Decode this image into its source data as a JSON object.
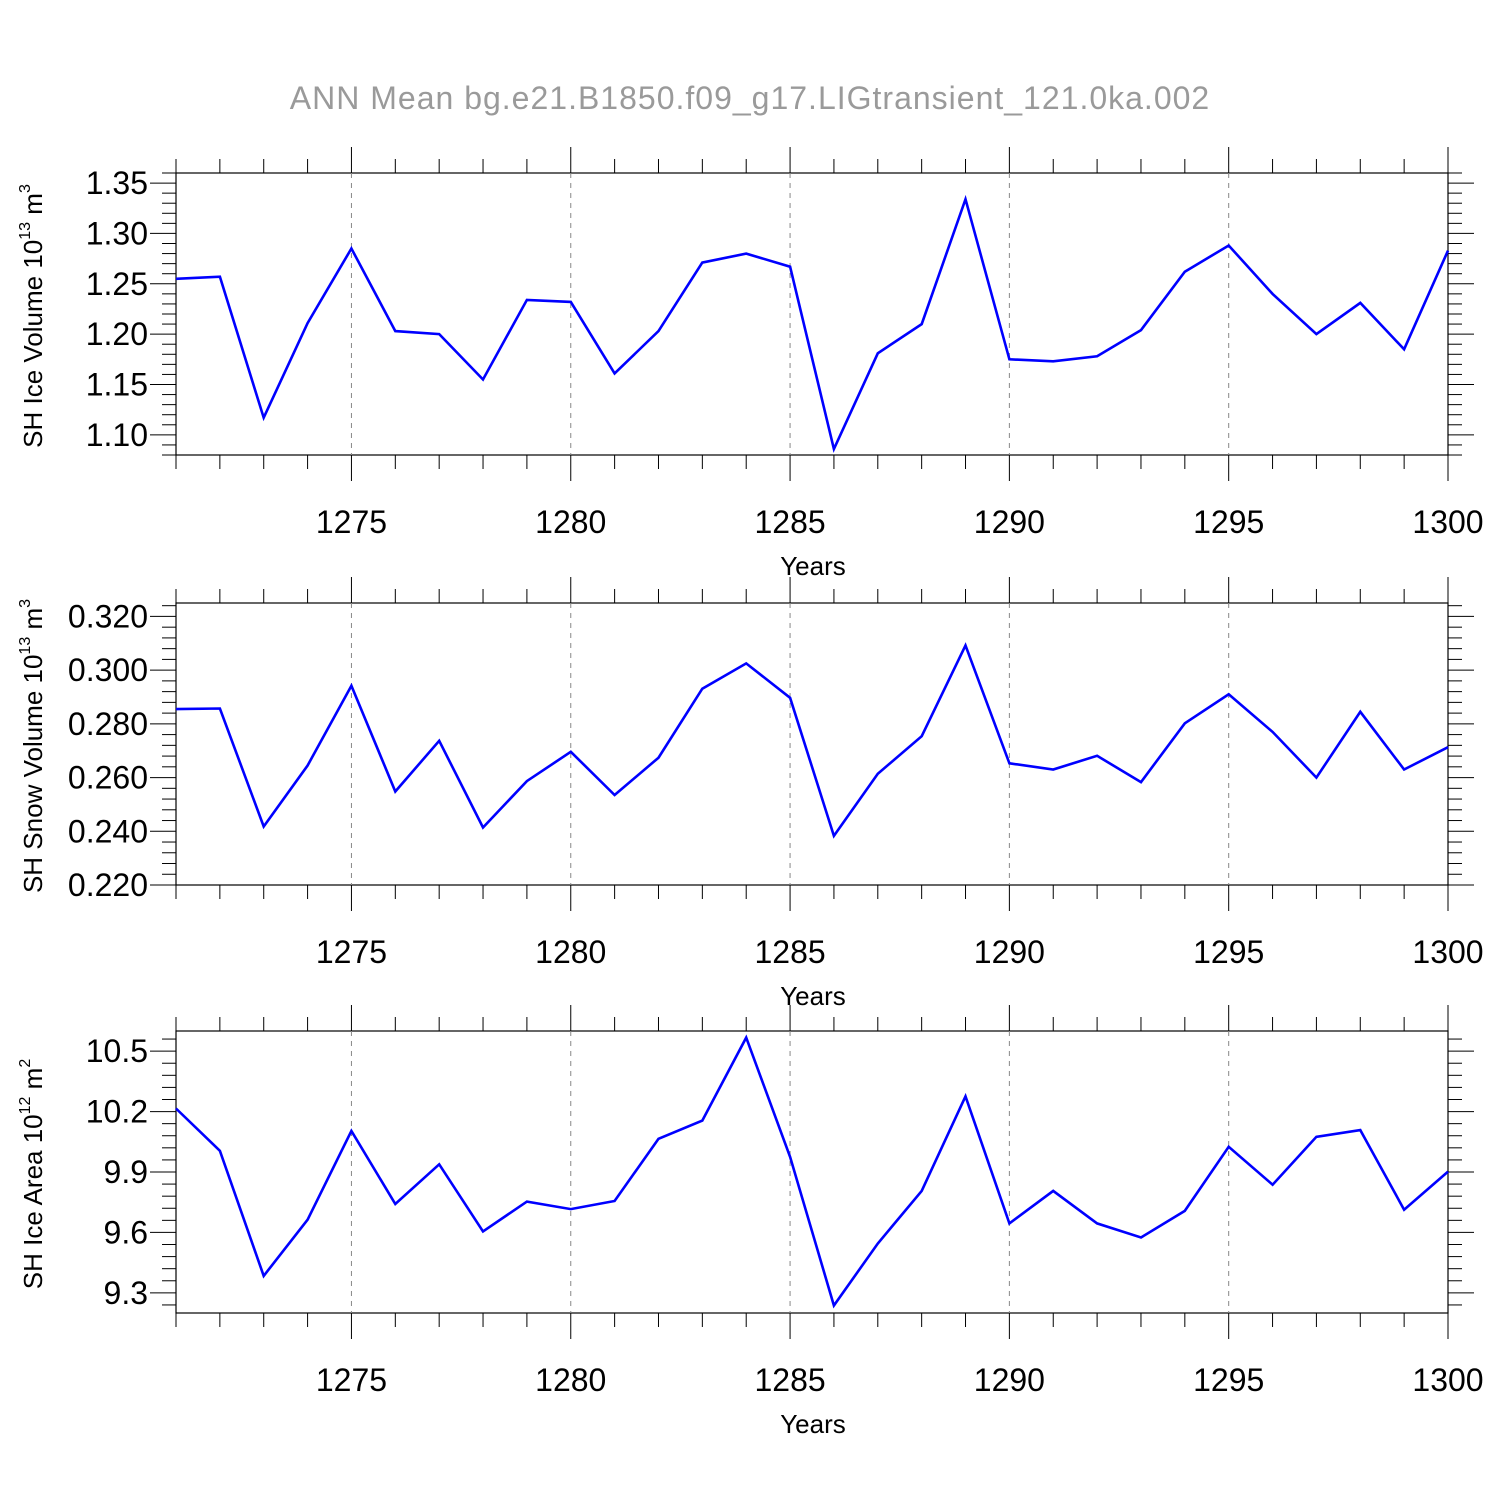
{
  "title": "ANN Mean  bg.e21.B1850.f09_g17.LIGtransient_121.0ka.002",
  "colors": {
    "series": "#0000ff",
    "grid": "#888888",
    "axes": "#000000",
    "title": "#9a9a9a"
  },
  "chart_data": [
    {
      "type": "line",
      "ylabel": "SH Ice Volume 10",
      "ylabel_exp": "13",
      "ylabel_unit": " m",
      "ylabel_unit_exp": "3",
      "xlabel": "Years",
      "xlim": [
        1271,
        1300
      ],
      "ylim": [
        1.08,
        1.36
      ],
      "xticks": [
        1275,
        1280,
        1285,
        1290,
        1295,
        1300
      ],
      "yticks": [
        "1.10",
        "1.15",
        "1.20",
        "1.25",
        "1.30",
        "1.35"
      ],
      "grid": "vertical dashed at major x ticks",
      "x": [
        1271,
        1272,
        1273,
        1274,
        1275,
        1276,
        1277,
        1278,
        1279,
        1280,
        1281,
        1282,
        1283,
        1284,
        1285,
        1286,
        1287,
        1288,
        1289,
        1290,
        1291,
        1292,
        1293,
        1294,
        1295,
        1296,
        1297,
        1298,
        1299,
        1300
      ],
      "values": [
        1.255,
        1.257,
        1.117,
        1.211,
        1.285,
        1.203,
        1.2,
        1.155,
        1.234,
        1.232,
        1.161,
        1.203,
        1.271,
        1.28,
        1.267,
        1.086,
        1.181,
        1.21,
        1.334,
        1.175,
        1.173,
        1.178,
        1.204,
        1.262,
        1.288,
        1.24,
        1.2,
        1.231,
        1.185,
        1.283
      ]
    },
    {
      "type": "line",
      "ylabel": "SH Snow Volume 10",
      "ylabel_exp": "13",
      "ylabel_unit": " m",
      "ylabel_unit_exp": "3",
      "xlabel": "Years",
      "xlim": [
        1271,
        1300
      ],
      "ylim": [
        0.22,
        0.325
      ],
      "xticks": [
        1275,
        1280,
        1285,
        1290,
        1295,
        1300
      ],
      "yticks": [
        "0.220",
        "0.240",
        "0.260",
        "0.280",
        "0.300",
        "0.320"
      ],
      "grid": "vertical dashed at major x ticks",
      "x": [
        1271,
        1272,
        1273,
        1274,
        1275,
        1276,
        1277,
        1278,
        1279,
        1280,
        1281,
        1282,
        1283,
        1284,
        1285,
        1286,
        1287,
        1288,
        1289,
        1290,
        1291,
        1292,
        1293,
        1294,
        1295,
        1296,
        1297,
        1298,
        1299,
        1300
      ],
      "values": [
        0.2855,
        0.2857,
        0.2418,
        0.2645,
        0.2942,
        0.2548,
        0.2737,
        0.2414,
        0.2587,
        0.2696,
        0.2535,
        0.2674,
        0.2931,
        0.3025,
        0.2897,
        0.2383,
        0.2614,
        0.2754,
        0.3092,
        0.2653,
        0.263,
        0.2681,
        0.2583,
        0.2802,
        0.291,
        0.277,
        0.26,
        0.2845,
        0.263,
        0.2713
      ]
    },
    {
      "type": "line",
      "ylabel": "SH Ice Area 10",
      "ylabel_exp": "12",
      "ylabel_unit": " m",
      "ylabel_unit_exp": "2",
      "xlabel": "Years",
      "xlim": [
        1271,
        1300
      ],
      "ylim": [
        9.2,
        10.6
      ],
      "xticks": [
        1275,
        1280,
        1285,
        1290,
        1295,
        1300
      ],
      "yticks": [
        "9.3",
        "9.6",
        "9.9",
        "10.2",
        "10.5"
      ],
      "grid": "vertical dashed at major x ticks",
      "x": [
        1271,
        1272,
        1273,
        1274,
        1275,
        1276,
        1277,
        1278,
        1279,
        1280,
        1281,
        1282,
        1283,
        1284,
        1285,
        1286,
        1287,
        1288,
        1289,
        1290,
        1291,
        1292,
        1293,
        1294,
        1295,
        1296,
        1297,
        1298,
        1299,
        1300
      ],
      "values": [
        10.215,
        10.005,
        9.384,
        9.663,
        10.104,
        9.741,
        9.938,
        9.605,
        9.753,
        9.716,
        9.756,
        10.065,
        10.155,
        10.567,
        9.975,
        9.237,
        9.545,
        9.806,
        10.276,
        9.645,
        9.806,
        9.645,
        9.575,
        9.707,
        10.025,
        9.837,
        10.075,
        10.108,
        9.713,
        9.902
      ]
    }
  ]
}
